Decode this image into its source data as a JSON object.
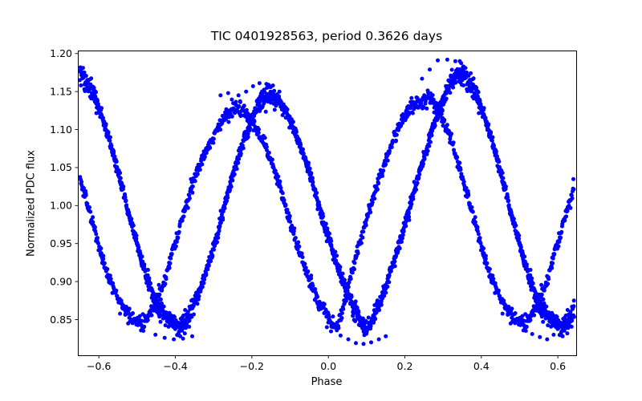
{
  "chart_data": {
    "type": "scatter",
    "title": "TIC 0401928563, period 0.3626 days",
    "xlabel": "Phase",
    "ylabel": "Normalized PDC flux",
    "xlim": [
      -0.655,
      0.648
    ],
    "ylim": [
      0.803,
      1.204
    ],
    "xticks": [
      -0.6,
      -0.4,
      -0.2,
      0.0,
      0.2,
      0.4,
      0.6
    ],
    "xtick_labels": [
      "−0.6",
      "−0.4",
      "−0.2",
      "0.0",
      "0.2",
      "0.4",
      "0.6"
    ],
    "yticks": [
      0.85,
      0.9,
      0.95,
      1.0,
      1.05,
      1.1,
      1.15,
      1.2
    ],
    "ytick_labels": [
      "0.85",
      "0.90",
      "0.95",
      "1.00",
      "1.05",
      "1.10",
      "1.15",
      "1.20"
    ],
    "grid": false,
    "legend": "none",
    "marker": {
      "color": "#0000ff",
      "radius_px": 2.5,
      "shape": "dot"
    },
    "fold_duplicate_beyond": 0.34,
    "series": [
      {
        "name": "folded-trace-1",
        "n_points": 950,
        "sigma_base": 0.004,
        "sigma_extreme": 0.006,
        "knots": [
          [
            -0.485,
            0.846
          ],
          [
            -0.44,
            0.885
          ],
          [
            -0.4,
            0.952
          ],
          [
            -0.35,
            1.035
          ],
          [
            -0.3,
            1.092
          ],
          [
            -0.245,
            1.127
          ],
          [
            -0.19,
            1.103
          ],
          [
            -0.14,
            1.046
          ],
          [
            -0.09,
            0.963
          ],
          [
            -0.045,
            0.896
          ],
          [
            0.0,
            0.853
          ],
          [
            0.025,
            0.844
          ],
          [
            0.055,
            0.9
          ],
          [
            0.09,
            0.965
          ],
          [
            0.13,
            1.03
          ],
          [
            0.17,
            1.086
          ],
          [
            0.21,
            1.125
          ],
          [
            0.265,
            1.14
          ],
          [
            0.31,
            1.1
          ],
          [
            0.36,
            1.02
          ],
          [
            0.41,
            0.93
          ],
          [
            0.45,
            0.878
          ],
          [
            0.487,
            0.851
          ],
          [
            0.515,
            0.846
          ]
        ]
      },
      {
        "name": "folded-trace-2",
        "n_points": 1500,
        "sigma_base": 0.004,
        "sigma_extreme": 0.006,
        "knots": [
          [
            -0.385,
            0.842
          ],
          [
            -0.345,
            0.878
          ],
          [
            -0.3,
            0.945
          ],
          [
            -0.255,
            1.03
          ],
          [
            -0.21,
            1.1
          ],
          [
            -0.165,
            1.144
          ],
          [
            -0.115,
            1.126
          ],
          [
            -0.06,
            1.06
          ],
          [
            -0.005,
            0.966
          ],
          [
            0.05,
            0.886
          ],
          [
            0.1,
            0.842
          ],
          [
            0.14,
            0.88
          ],
          [
            0.185,
            0.95
          ],
          [
            0.23,
            1.03
          ],
          [
            0.285,
            1.118
          ],
          [
            0.335,
            1.17
          ],
          [
            0.385,
            1.148
          ],
          [
            0.435,
            1.072
          ],
          [
            0.49,
            0.968
          ],
          [
            0.545,
            0.878
          ],
          [
            0.59,
            0.848
          ],
          [
            0.615,
            0.842
          ]
        ]
      }
    ],
    "outliers": [
      [
        0.286,
        1.191
      ],
      [
        0.311,
        1.192
      ],
      [
        0.332,
        1.19
      ],
      [
        0.353,
        1.183
      ],
      [
        0.265,
        1.179
      ],
      [
        0.372,
        1.174
      ],
      [
        0.245,
        1.167
      ],
      [
        -0.215,
        1.15
      ],
      [
        -0.197,
        1.157
      ],
      [
        -0.18,
        1.161
      ],
      [
        -0.162,
        1.16
      ],
      [
        -0.145,
        1.158
      ],
      [
        -0.128,
        1.15
      ],
      [
        -0.235,
        1.145
      ],
      [
        -0.282,
        1.145
      ],
      [
        -0.262,
        1.148
      ],
      [
        0.032,
        0.829
      ],
      [
        0.052,
        0.824
      ],
      [
        0.072,
        0.819
      ],
      [
        0.092,
        0.818
      ],
      [
        0.112,
        0.82
      ],
      [
        0.132,
        0.824
      ],
      [
        0.15,
        0.828
      ],
      [
        -0.452,
        0.83
      ],
      [
        -0.428,
        0.826
      ],
      [
        -0.404,
        0.824
      ],
      [
        -0.38,
        0.825
      ],
      [
        -0.356,
        0.828
      ],
      [
        0.533,
        0.831
      ],
      [
        0.553,
        0.827
      ],
      [
        0.572,
        0.824
      ],
      [
        0.589,
        0.83
      ]
    ]
  }
}
